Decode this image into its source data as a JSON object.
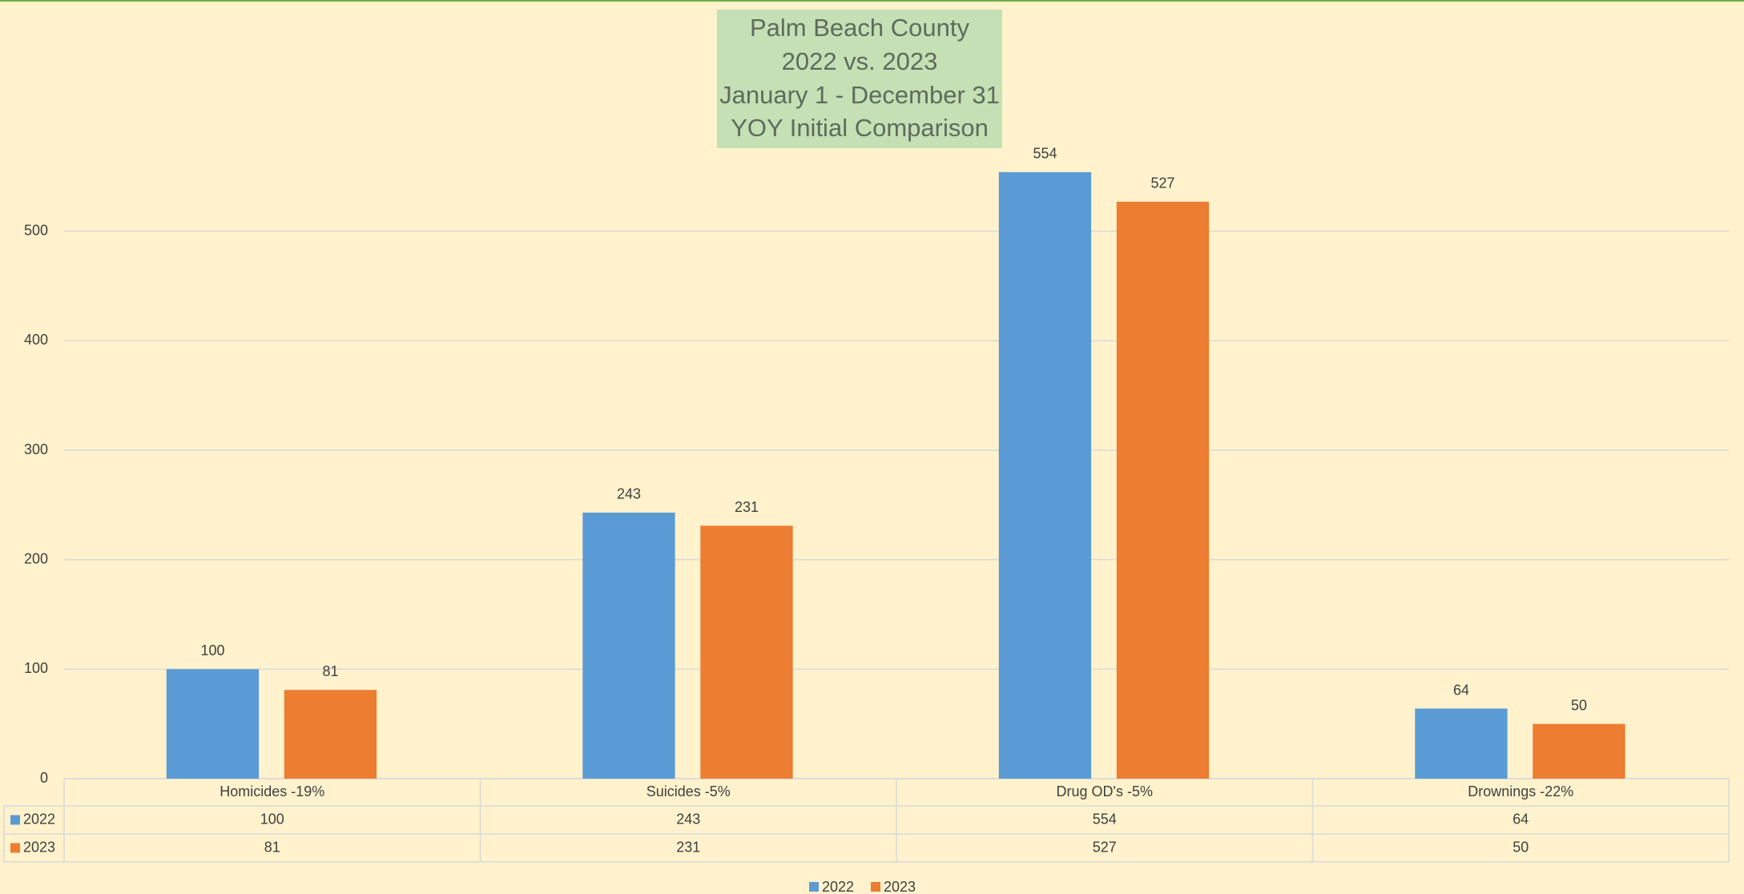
{
  "chart_data": {
    "type": "bar",
    "title": [
      "Palm Beach County",
      "2022 vs. 2023",
      "January 1 - December 31",
      "YOY Initial Comparison"
    ],
    "categories": [
      "Homicides -19%",
      "Suicides -5%",
      "Drug OD's -5%",
      "Drownings -22%"
    ],
    "series": [
      {
        "name": "2022",
        "color": "#5b9bd5",
        "values": [
          100,
          243,
          554,
          64
        ]
      },
      {
        "name": "2023",
        "color": "#ed7d31",
        "values": [
          81,
          231,
          527,
          50
        ]
      }
    ],
    "ylim": [
      0,
      600
    ],
    "yticks": [
      0,
      100,
      200,
      300,
      400,
      500
    ],
    "grid": true,
    "legend": "bottom",
    "data_table": true
  }
}
